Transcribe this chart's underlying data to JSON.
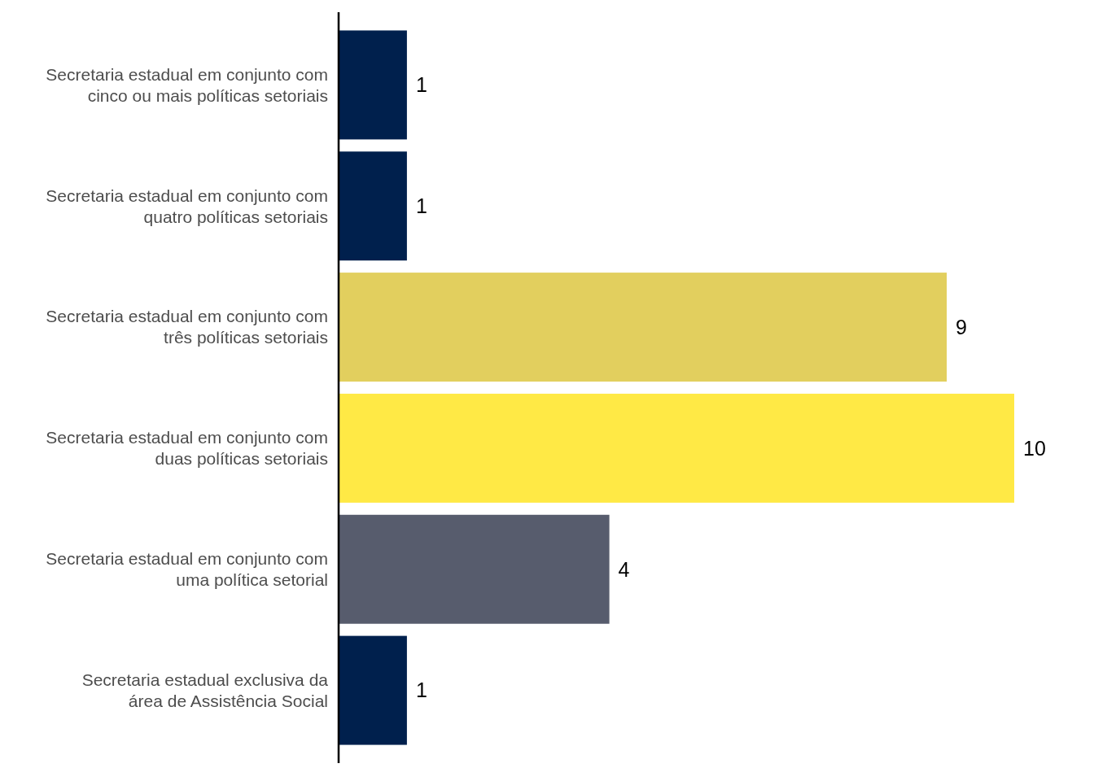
{
  "chart_data": {
    "type": "bar",
    "orientation": "horizontal",
    "data_labels": true,
    "categories": [
      "Secretaria estadual em conjunto com\ncinco ou mais políticas setoriais",
      "Secretaria estadual em conjunto com\nquatro políticas setoriais",
      "Secretaria estadual em conjunto com\ntrês políticas setoriais",
      "Secretaria estadual em conjunto com\nduas políticas setoriais",
      "Secretaria estadual em conjunto com\numa política setorial",
      "Secretaria estadual exclusiva da\nárea de Assistência Social"
    ],
    "values": [
      1,
      1,
      9,
      10,
      4,
      1
    ],
    "colors": [
      "#00204d",
      "#00204d",
      "#e2cf5e",
      "#ffe945",
      "#575c6d",
      "#00204d"
    ]
  }
}
